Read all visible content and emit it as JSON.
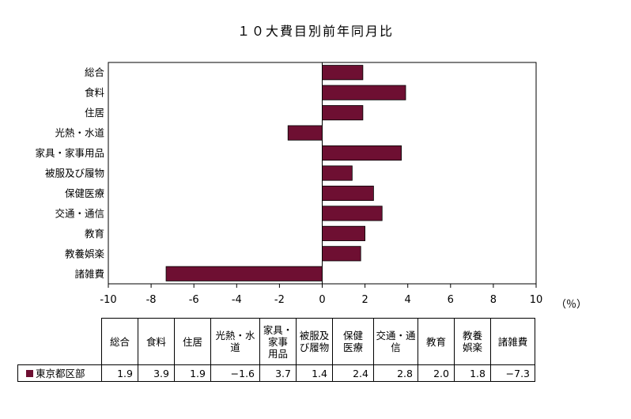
{
  "chart_data": {
    "type": "bar",
    "orientation": "horizontal",
    "title": "１０大費目別前年同月比",
    "categories": [
      "総合",
      "食料",
      "住居",
      "光熱・水道",
      "家具・家事用品",
      "被服及び履物",
      "保健医療",
      "交通・通信",
      "教育",
      "教養娯楽",
      "諸雑費"
    ],
    "series": [
      {
        "name": "東京都区部",
        "values": [
          1.9,
          3.9,
          1.9,
          -1.6,
          3.7,
          1.4,
          2.4,
          2.8,
          2.0,
          1.8,
          -7.3
        ],
        "color": "#6e0f32"
      }
    ],
    "xlim": [
      -10,
      10
    ],
    "xticks": [
      "-10",
      "-8",
      "-6",
      "-4",
      "-2",
      "0",
      "2",
      "4",
      "6",
      "8",
      "10"
    ],
    "unit_label": "（％）",
    "grid": false
  },
  "table": {
    "headers": [
      [
        "総合"
      ],
      [
        "食料"
      ],
      [
        "住居"
      ],
      [
        "光熱・水",
        "道"
      ],
      [
        "家具・",
        "家事",
        "用品"
      ],
      [
        "被服及",
        "び履物"
      ],
      [
        "保健",
        "医療"
      ],
      [
        "交通・通",
        "信"
      ],
      [
        "教育"
      ],
      [
        "教養",
        "娯楽"
      ],
      [
        "諸雑費"
      ]
    ],
    "row_label": "東京都区部",
    "values": [
      "1.9",
      "3.9",
      "1.9",
      "−1.6",
      "3.7",
      "1.4",
      "2.4",
      "2.8",
      "2.0",
      "1.8",
      "−7.3"
    ]
  }
}
